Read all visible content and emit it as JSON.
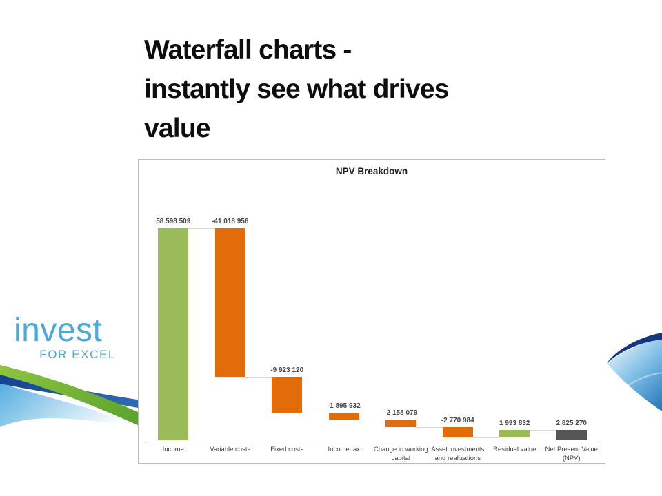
{
  "slide": {
    "title_lines": [
      "Waterfall charts -",
      "instantly see what drives",
      "value"
    ]
  },
  "logo": {
    "name": "invest",
    "subtitle": "FOR EXCEL",
    "color": "#4ba8db"
  },
  "chart_data": {
    "type": "bar",
    "subtype": "waterfall",
    "title": "NPV Breakdown",
    "categories": [
      "Income",
      "Variable costs",
      "Fixed costs",
      "Income tax",
      "Change in working capital",
      "Asset investments and realizations",
      "Residual value",
      "Net Present Value (NPV)"
    ],
    "values": [
      58598509,
      -41018956,
      -9923120,
      -1895932,
      -2158079,
      -2770984,
      1993832,
      2825270
    ],
    "value_labels": [
      "58 598 509",
      "-41 018 956",
      "-9 923 120",
      "-1 895 932",
      "-2 158 079",
      "-2 770 984",
      "1 993 832",
      "2 825 270"
    ],
    "bar_roles": [
      "start",
      "decrease",
      "decrease",
      "decrease",
      "decrease",
      "decrease",
      "increase",
      "total"
    ],
    "colors": {
      "increase": "#9bbb59",
      "decrease": "#e36c0a",
      "total": "#555555"
    },
    "connector_color": "#d9d9d9",
    "axis_color": "#bfbfbf",
    "xlabel": "",
    "ylabel": "",
    "ylim": [
      0,
      65000000
    ],
    "grid": false,
    "legend": false
  }
}
